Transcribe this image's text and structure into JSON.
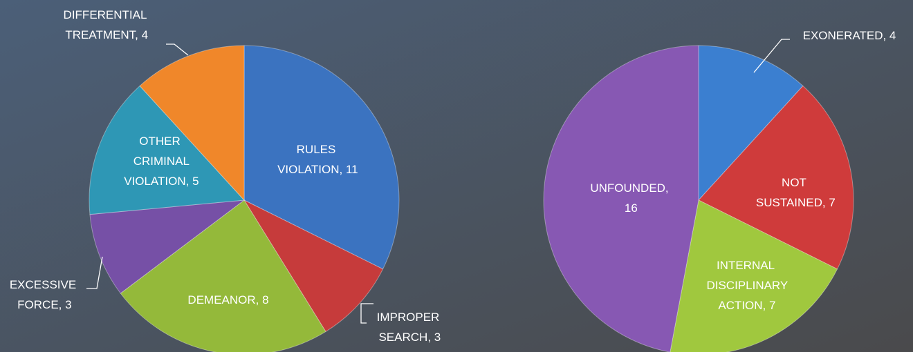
{
  "chart_data": [
    {
      "type": "pie",
      "values": [
        11,
        3,
        8,
        3,
        5,
        4
      ],
      "value_labels": [
        "RULES VIOLATION, 11",
        "IMPROPER SEARCH, 3",
        "DEMEANOR, 8",
        "EXCESSIVE FORCE, 3",
        "OTHER CRIMINAL VIOLATION, 5",
        "DIFFERENTIAL TREATMENT, 4"
      ],
      "colors": [
        "#3b73c0",
        "#c63b3b",
        "#94b93a",
        "#7650a6",
        "#2e97b5",
        "#f0872a"
      ]
    },
    {
      "type": "pie",
      "values": [
        4,
        7,
        7,
        16
      ],
      "value_labels": [
        "EXONERATED, 4",
        "NOT SUSTAINED, 7",
        "INTERNAL DISCIPLINARY ACTION, 7",
        "UNFOUNDED, 16"
      ],
      "colors": [
        "#3b7fd0",
        "#cf3b3b",
        "#a0c83e",
        "#8758b3"
      ]
    }
  ]
}
